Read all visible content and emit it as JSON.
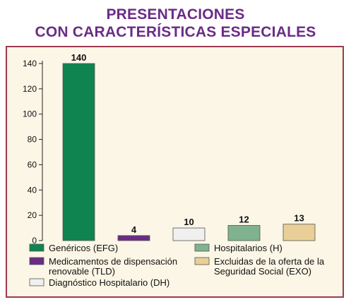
{
  "title_line1": "PRESENTACIONES",
  "title_line2": "CON CARACTERÍSTICAS ESPECIALES",
  "colors": {
    "title": "#6a2c86",
    "border": "#9a3b4f",
    "panel_bg": "#fbf6e6"
  },
  "chart_data": {
    "type": "bar",
    "title": "PRESENTACIONES CON CARACTERÍSTICAS ESPECIALES",
    "xlabel": "",
    "ylabel": "",
    "ylim": [
      0,
      140
    ],
    "yticks": [
      0,
      20,
      40,
      60,
      80,
      100,
      120,
      140
    ],
    "grid": false,
    "legend_position": "bottom",
    "categories": [
      "Genéricos (EFG)",
      "Medicamentos de dispensación renovable (TLD)",
      "Diagnóstico Hospitalario (DH)",
      "Hospitalarios (H)",
      "Excluidas de la oferta de la Seguridad Social (EXO)"
    ],
    "values": [
      140,
      4,
      10,
      12,
      13
    ],
    "data_labels": [
      "140",
      "4",
      "10",
      "12",
      "13"
    ],
    "colors": [
      "#0f8450",
      "#6a2c86",
      "#f0f0f0",
      "#7fb28f",
      "#e9cf97"
    ],
    "legend": [
      {
        "lines": [
          "Genéricos (EFG)"
        ],
        "color": "#0f8450"
      },
      {
        "lines": [
          "Medicamentos de dispensación",
          "renovable (TLD)"
        ],
        "color": "#6a2c86"
      },
      {
        "lines": [
          "Diagnóstico Hospitalario (DH)"
        ],
        "color": "#f0f0f0"
      },
      {
        "lines": [
          "Hospitalarios (H)"
        ],
        "color": "#7fb28f"
      },
      {
        "lines": [
          "Excluidas de la oferta de la",
          "Seguridad Social (EXO)"
        ],
        "color": "#e9cf97"
      }
    ]
  }
}
